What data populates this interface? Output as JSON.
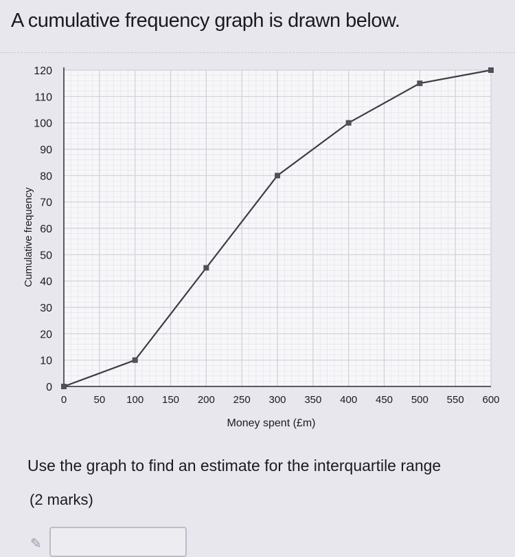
{
  "question_title": "A cumulative frequency graph is drawn below.",
  "prompt": "Use the graph to find an estimate for the interquartile range",
  "marks": "(2 marks)",
  "answer_box": {
    "value": ""
  },
  "icons": {
    "pencil": "pencil-icon"
  },
  "chart_data": {
    "type": "line",
    "title": "",
    "xlabel": "Money spent (£m)",
    "ylabel": "Cumulative frequency",
    "xlim": [
      0,
      600
    ],
    "ylim": [
      0,
      120
    ],
    "xticks": [
      0,
      50,
      100,
      150,
      200,
      250,
      300,
      350,
      400,
      450,
      500,
      550,
      600
    ],
    "yticks": [
      0,
      10,
      20,
      30,
      40,
      50,
      60,
      70,
      80,
      90,
      100,
      110,
      120
    ],
    "grid": true,
    "series": [
      {
        "points": [
          {
            "x": 0,
            "y": 0
          },
          {
            "x": 100,
            "y": 10
          },
          {
            "x": 200,
            "y": 45
          },
          {
            "x": 300,
            "y": 80
          },
          {
            "x": 400,
            "y": 100
          },
          {
            "x": 500,
            "y": 115
          },
          {
            "x": 600,
            "y": 120
          }
        ]
      }
    ],
    "colors": {
      "line": "#3c3c44",
      "grid": "#cfcfd6",
      "axis": "#2a2a30"
    }
  }
}
